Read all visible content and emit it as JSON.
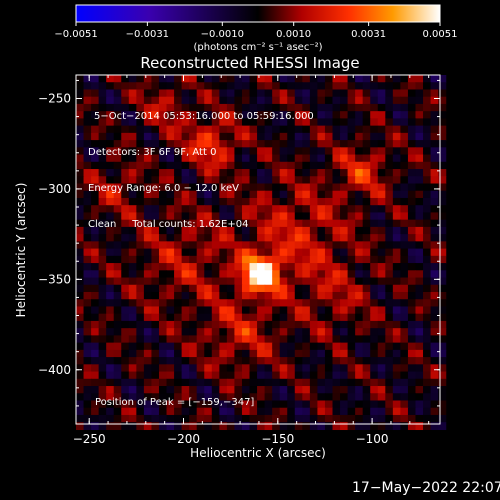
{
  "chart_data": {
    "type": "heatmap",
    "title": "Reconstructed RHESSI Image",
    "xlabel": "Heliocentric X (arcsec)",
    "ylabel": "Heliocentric Y (arcsec)",
    "xlim": [
      -257,
      -64
    ],
    "ylim": [
      -430,
      -237
    ],
    "x_ticks": [
      -250,
      -200,
      -150,
      -100
    ],
    "x_tick_labels": [
      "−250",
      "−200",
      "−150",
      "−100"
    ],
    "y_ticks": [
      -250,
      -300,
      -350,
      -400
    ],
    "y_tick_labels": [
      "−250",
      "−300",
      "−350",
      "−400"
    ],
    "colorbar": {
      "range": [
        -0.0051,
        0.0051
      ],
      "ticks": [
        -0.0051,
        -0.0031,
        -0.001,
        0.001,
        0.0031,
        0.0051
      ],
      "tick_labels": [
        "−0.0051",
        "−0.0031",
        "−0.0010",
        "0.0010",
        "0.0031",
        "0.0051"
      ],
      "units": "(photons cm⁻² s⁻¹ asec⁻²)",
      "colors": [
        "#0000ff",
        "#3a00b0",
        "#000000",
        "#b00000",
        "#ff3000",
        "#ff9a00",
        "#ffffff"
      ]
    },
    "peak": {
      "x": -159,
      "y": -347
    },
    "sources": [
      {
        "x": -159,
        "y": -347,
        "sigma": 7,
        "amp": 0.0051
      },
      {
        "x": -140,
        "y": -325,
        "sigma": 20,
        "amp": 0.0016
      },
      {
        "x": -185,
        "y": -275,
        "sigma": 10,
        "amp": 0.0022
      },
      {
        "x": -105,
        "y": -290,
        "sigma": 10,
        "amp": 0.0018
      },
      {
        "x": -170,
        "y": -380,
        "sigma": 14,
        "amp": 0.0015
      },
      {
        "x": -235,
        "y": -300,
        "sigma": 10,
        "amp": 0.0012
      },
      {
        "x": -200,
        "y": -340,
        "sigma": 18,
        "amp": 0.0012
      },
      {
        "x": -120,
        "y": -360,
        "sigma": 14,
        "amp": 0.001
      },
      {
        "x": -210,
        "y": -255,
        "sigma": 10,
        "amp": 0.0012
      }
    ]
  },
  "info_lines": [
    "5−Oct−2014 05:53:16.000 to 05:59:16.000",
    "Detectors: 3F 6F 9F, Att 0",
    "Energy Range: 6.0 − 12.0 keV",
    "Clean     Total counts: 1.62E+04"
  ],
  "peak_label": "Position of Peak = [−159,−347]",
  "timestamp": "17−May−2022 22:07"
}
